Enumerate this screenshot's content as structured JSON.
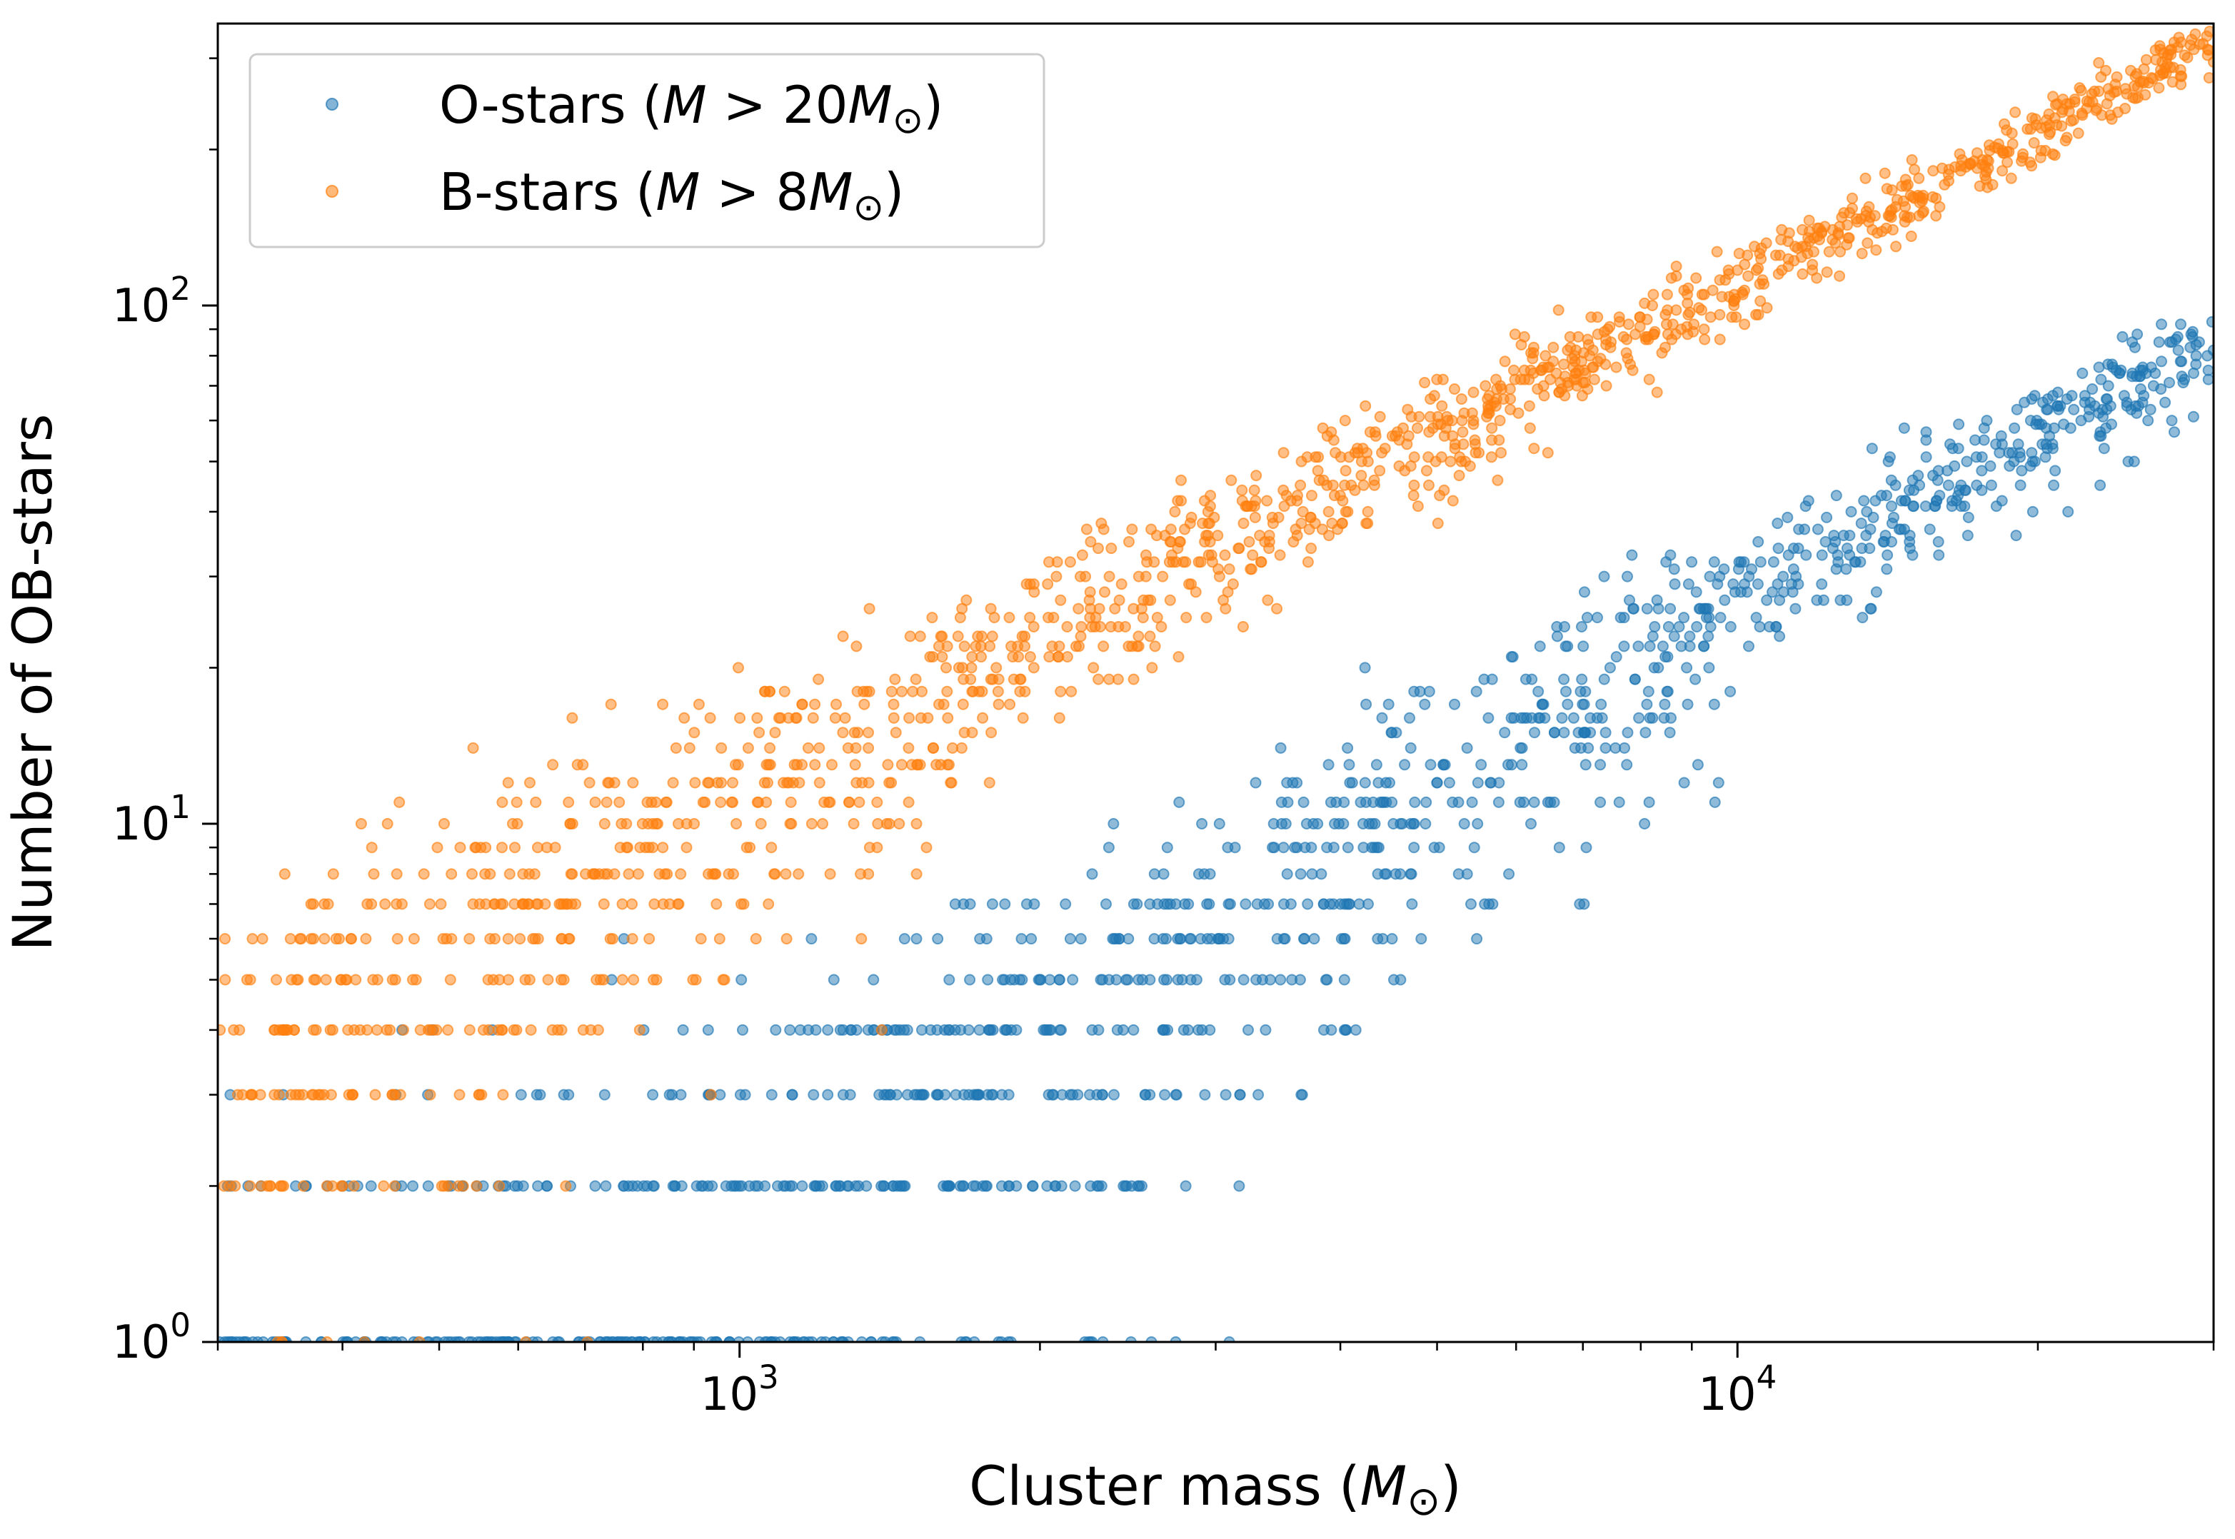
{
  "chart_data": {
    "type": "scatter",
    "title": "",
    "xlabel_prefix": "Cluster mass (",
    "xlabel_symbol": "M",
    "xlabel_sub": "⊙",
    "xlabel_suffix": ")",
    "ylabel": "Number of OB-stars",
    "xscale": "log",
    "yscale": "log",
    "xlim": [
      300,
      30000
    ],
    "ylim": [
      1,
      350
    ],
    "grid": false,
    "legend_position": "upper-left",
    "x_major_ticks": [
      {
        "base": "10",
        "exp": "3",
        "value": 1000
      },
      {
        "base": "10",
        "exp": "4",
        "value": 10000
      }
    ],
    "y_major_ticks": [
      {
        "base": "10",
        "exp": "0",
        "value": 1
      },
      {
        "base": "10",
        "exp": "1",
        "value": 10
      },
      {
        "base": "10",
        "exp": "2",
        "value": 100
      }
    ],
    "colors": {
      "o_stars": "#1f77b4",
      "b_stars": "#ff7f0e"
    },
    "series": [
      {
        "name": "O-stars",
        "legend_prefix": "O-stars (",
        "legend_symbol": "M",
        "legend_op": " > 20",
        "legend_suffix": ")",
        "mass_threshold_msun": 20,
        "color": "#1f77b4",
        "trend_points": [
          [
            300,
            0.4
          ],
          [
            1000,
            1.6
          ],
          [
            3000,
            6
          ],
          [
            10000,
            27
          ],
          [
            30000,
            85
          ]
        ],
        "points_drawn_per_decade": 700
      },
      {
        "name": "B-stars",
        "legend_prefix": "B-stars (",
        "legend_symbol": "M",
        "legend_op": " > 8",
        "legend_suffix": ")",
        "mass_threshold_msun": 8,
        "color": "#ff7f0e",
        "trend_points": [
          [
            300,
            3.3
          ],
          [
            1000,
            11
          ],
          [
            3000,
            35
          ],
          [
            10000,
            110
          ],
          [
            30000,
            320
          ]
        ],
        "points_drawn_per_decade": 700
      }
    ]
  }
}
